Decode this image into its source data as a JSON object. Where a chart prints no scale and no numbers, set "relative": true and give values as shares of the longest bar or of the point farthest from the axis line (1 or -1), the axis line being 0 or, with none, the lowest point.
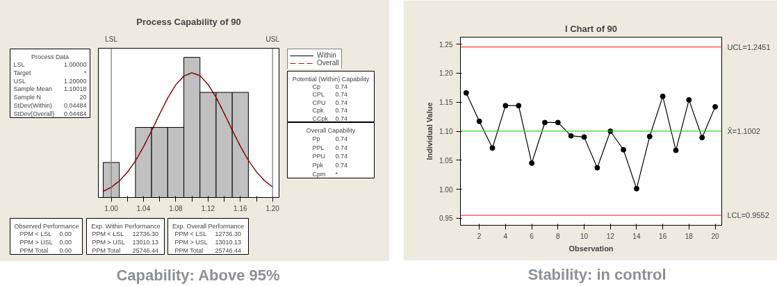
{
  "chart_data": [
    {
      "type": "histogram",
      "title": "Process Capability of 90",
      "relative": true,
      "bins": [
        0.99,
        1.01,
        1.03,
        1.05,
        1.07,
        1.09,
        1.11,
        1.13,
        1.15,
        1.17
      ],
      "values": [
        0.25,
        0,
        0.5,
        0.5,
        0.5,
        1,
        0.75,
        0.75,
        0.75
      ],
      "color": "#c0c0c0",
      "series": [
        {
          "name": "Within",
          "type": "line",
          "color": "#000000",
          "line_style": "solid",
          "x": [
            0.99,
            1.0,
            1.01,
            1.02,
            1.03,
            1.04,
            1.05,
            1.06,
            1.07,
            1.08,
            1.09,
            1.1,
            1.11,
            1.12,
            1.13,
            1.14,
            1.15,
            1.16,
            1.17,
            1.18,
            1.19,
            1.2
          ],
          "values": [
            0.044,
            0.073,
            0.118,
            0.18,
            0.261,
            0.362,
            0.476,
            0.596,
            0.71,
            0.804,
            0.867,
            0.89,
            0.869,
            0.807,
            0.714,
            0.6,
            0.48,
            0.366,
            0.265,
            0.183,
            0.12,
            0.075
          ]
        },
        {
          "name": "Overall",
          "type": "line",
          "color": "#e00000",
          "line_style": "dashed",
          "x": [
            0.99,
            1.0,
            1.01,
            1.02,
            1.03,
            1.04,
            1.05,
            1.06,
            1.07,
            1.08,
            1.09,
            1.1,
            1.11,
            1.12,
            1.13,
            1.14,
            1.15,
            1.16,
            1.17,
            1.18,
            1.19,
            1.2
          ],
          "values": [
            0.044,
            0.073,
            0.118,
            0.18,
            0.261,
            0.362,
            0.476,
            0.596,
            0.71,
            0.804,
            0.867,
            0.89,
            0.869,
            0.807,
            0.714,
            0.6,
            0.48,
            0.366,
            0.265,
            0.183,
            0.12,
            0.075
          ]
        }
      ],
      "xlim": [
        0.984,
        1.208
      ],
      "xticks": [
        {
          "value": 1.0,
          "label": "1.00"
        },
        {
          "value": 1.02,
          "label": null
        },
        1.04,
        {
          "value": 1.06,
          "label": null
        },
        1.08,
        {
          "value": 1.1,
          "label": null
        },
        1.12,
        {
          "value": 1.14,
          "label": null
        },
        1.16,
        {
          "value": 1.18,
          "label": null
        },
        {
          "value": 1.2,
          "label": "1.20"
        }
      ],
      "ref_lines": [
        {
          "axis": "x",
          "value": 1.0,
          "label": "LSL",
          "color": "#808080"
        },
        {
          "axis": "x",
          "value": 1.2,
          "label": "USL",
          "color": "#808080"
        }
      ],
      "grid": false,
      "legend": "right",
      "annotations": [
        "Process Data\nLSL\t1.00000\nTarget\t*\nUSL\t1.20000\nSample Mean\t1.10018\nSample N\t20\nStDev(Within)\t0.04484\nStDev(Overall)\t0.04484",
        "Potential (Within) Capability\nCp\t0.74\nCPL\t0.74\nCPU\t0.74\nCpk\t0.74\nCCpk\t0.74",
        "Overall Capability\nPp\t0.74\nPPL\t0.74\nPPU\t0.74\nPpk\t0.74\nCpm\t*",
        "Observed Performance\nPPM < LSL\t0.00\nPPM > USL\t0.00\nPPM Total\t0.00",
        "Exp. Within Performance\nPPM < LSL\t12736.30\nPPM > USL\t13010.13\nPPM Total\t25746.44",
        "Exp. Overall Performance\nPPM < LSL\t12736.30\nPPM > USL\t13010.13\nPPM Total\t25746.44",
        "Capability: Above 95%"
      ]
    },
    {
      "type": "line",
      "title": "I Chart of 90",
      "xlabel": "Observation",
      "ylabel": "Individual Value",
      "x": [
        1,
        2,
        3,
        4,
        5,
        6,
        7,
        8,
        9,
        10,
        11,
        12,
        13,
        14,
        15,
        16,
        17,
        18,
        19,
        20
      ],
      "values": [
        1.166,
        1.117,
        1.071,
        1.144,
        1.144,
        1.045,
        1.115,
        1.115,
        1.092,
        1.09,
        1.037,
        1.1,
        1.068,
        1.001,
        1.091,
        1.16,
        1.067,
        1.154,
        1.089,
        1.142
      ],
      "color": "#000000",
      "marker": "circle",
      "xlim": [
        0.56,
        20.5
      ],
      "ylim": [
        0.938,
        1.262
      ],
      "xticks": [
        2,
        4,
        6,
        8,
        10,
        12,
        14,
        16,
        18,
        20
      ],
      "yticks": [
        0.95,
        {
          "value": 1.0,
          "label": "1.00"
        },
        1.05,
        {
          "value": 1.1,
          "label": "1.10"
        },
        1.15,
        {
          "value": 1.2,
          "label": "1.20"
        },
        1.25
      ],
      "ref_lines": [
        {
          "axis": "y",
          "value": 1.2451,
          "label": "UCL=1.2451",
          "color": "#f04848"
        },
        {
          "axis": "y",
          "value": 1.1002,
          "label": "X̄=1.1002",
          "color": "#22dd22"
        },
        {
          "axis": "y",
          "value": 0.9552,
          "label": "LCL=0.9552",
          "color": "#f04848"
        }
      ],
      "grid": false,
      "annotations": [
        "Stability: in control"
      ]
    }
  ]
}
